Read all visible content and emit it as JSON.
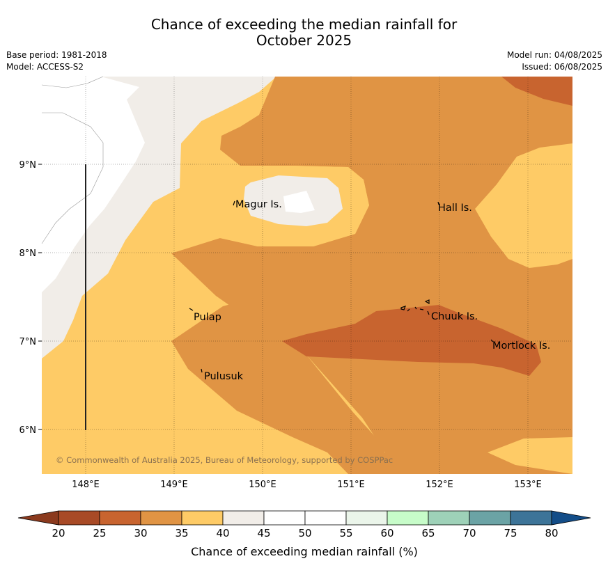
{
  "header": {
    "title_line1": "Chance of exceeding the median rainfall for",
    "title_line2": "October 2025",
    "base_period": "Base period: 1981-2018",
    "model": "Model: ACCESS-S2",
    "model_run": "Model run: 04/08/2025",
    "issued": "Issued: 06/08/2025"
  },
  "map": {
    "lon_ticks": [
      "148°E",
      "149°E",
      "150°E",
      "151°E",
      "152°E",
      "153°E"
    ],
    "lat_ticks": [
      "9°N",
      "8°N",
      "7°N",
      "6°N"
    ],
    "places": [
      "Magur Is.",
      "Hall Is.",
      "Pulap",
      "Chuuk Is.",
      "Mortlock Is.",
      "Pulusuk"
    ],
    "copyright": "© Commonwealth of Australia 2025, Bureau of Meteorology, supported by COSPPac"
  },
  "colorbar": {
    "tick_labels": [
      "20",
      "25",
      "30",
      "35",
      "40",
      "45",
      "50",
      "55",
      "60",
      "65",
      "70",
      "75",
      "80"
    ],
    "colors": [
      "#a84a26",
      "#c8642f",
      "#e09444",
      "#fecb66",
      "#f1ede8",
      "#ffffff",
      "#ffffff",
      "#ebf5ea",
      "#c7fcc9",
      "#9ed1b8",
      "#6ba3a5",
      "#3d7498"
    ],
    "below_color": "#8b3a1e",
    "above_color": "#134d88",
    "label": "Chance of exceeding median rainfall (%)"
  }
}
